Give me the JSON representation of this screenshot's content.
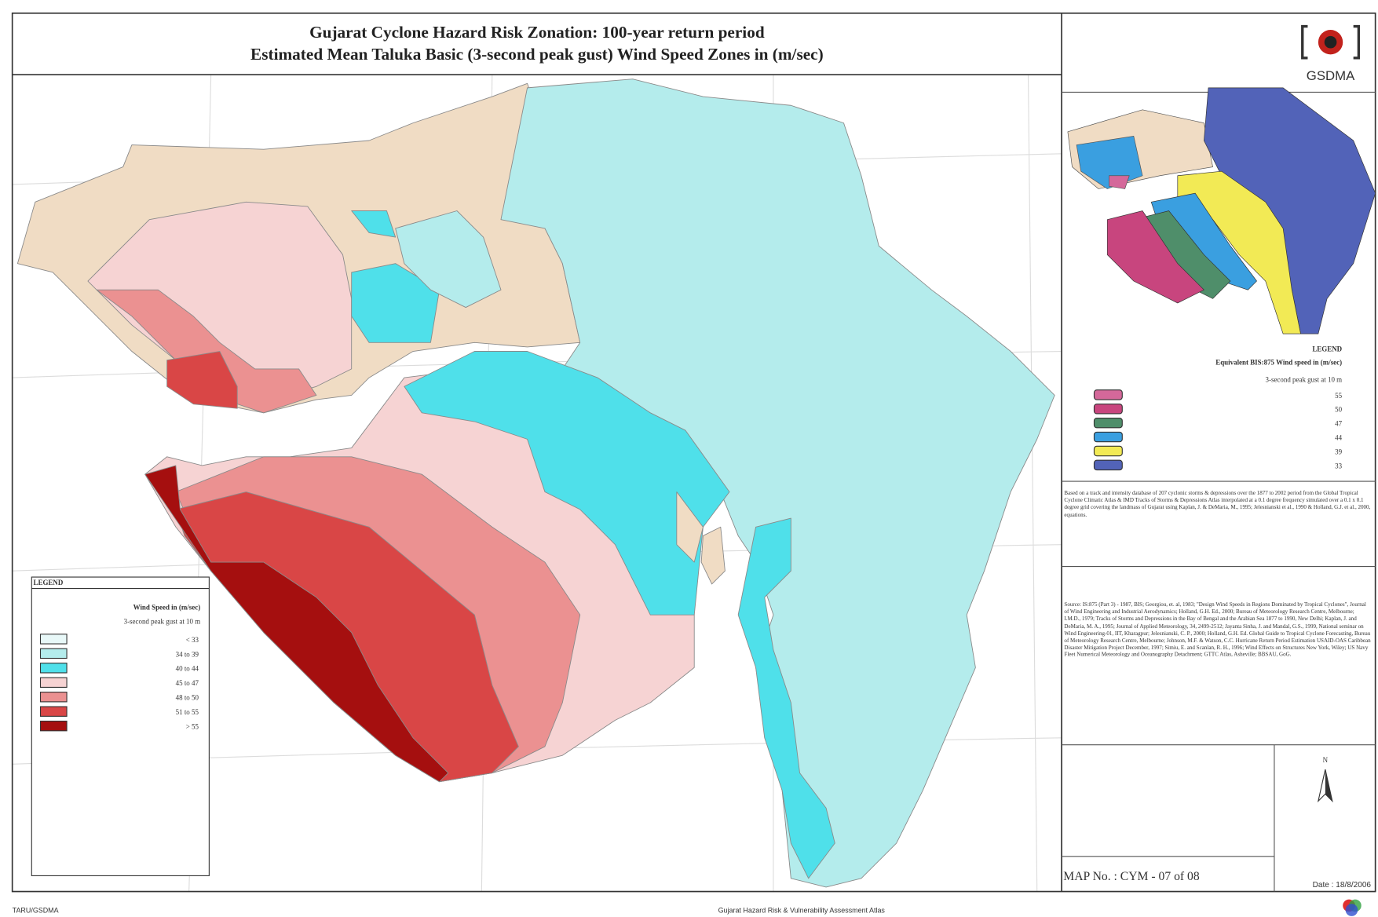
{
  "header": {
    "title_line1": "Gujarat Cyclone Hazard Risk Zonation: 100-year return period",
    "title_line2": "Estimated Mean Taluka Basic (3-second peak gust) Wind Speed Zones in (m/sec)"
  },
  "logo": {
    "text": "GSDMA"
  },
  "map_legend": {
    "title": "LEGEND",
    "heading": "Wind Speed in (m/sec)",
    "subheading": "3-second peak gust at 10 m",
    "items": [
      {
        "label": "< 33",
        "color": "#e8f8f8"
      },
      {
        "label": "34 to 39",
        "color": "#b4ecec"
      },
      {
        "label": "40 to 44",
        "color": "#4fe0ea"
      },
      {
        "label": "45 to 47",
        "color": "#f6d3d3"
      },
      {
        "label": "48 to 50",
        "color": "#eb9191"
      },
      {
        "label": "51 to 55",
        "color": "#d94646"
      },
      {
        "label": "> 55",
        "color": "#a50f0f"
      }
    ]
  },
  "inset_legend": {
    "title": "LEGEND",
    "heading": "Equivalent BIS:875 Wind speed in (m/sec)",
    "subheading": "3-second peak gust at 10 m",
    "items": [
      {
        "label": "55",
        "color": "#d4689a"
      },
      {
        "label": "50",
        "color": "#c8457e"
      },
      {
        "label": "47",
        "color": "#4f8e6a"
      },
      {
        "label": "44",
        "color": "#3a9fe0"
      },
      {
        "label": "39",
        "color": "#f2ea55"
      },
      {
        "label": "33",
        "color": "#5263b8"
      }
    ],
    "land_color": "#f0dcc4"
  },
  "notes": [
    "Based on a track and intensity database of 207 cyclonic storms & depressions over the 1877 to 2002 period from the Global Tropical Cyclone Climatic Atlas & IMD Tracks of Storms & Depressions Atlas interpolated at a 0.1 degree frequency simulated over a 0.1 x 0.1 degree grid covering the landmass of Gujarat using Kaplan, J. & DeMaria, M., 1995; Jelesnianski et al., 1990 & Holland, G.J. et al., 2000, equations.",
    "Source: IS:875 (Part 3) - 1987, BIS; Georgiou, et. al, 1983; \"Design Wind Speeds in Regions Dominated by Tropical Cyclones\", Journal of Wind Engineering and Industrial Aerodynamics; Holland, G.H. Ed., 2000; Bureau of Meteorology Research Centre, Melbourne; I.M.D., 1979; Tracks of Storms and Depressions in the Bay of Bengal and the Arabian Sea 1877 to 1990, New Delhi; Kaplan, J. and DeMaria, M. A., 1995; Journal of Applied Meteorology, 34, 2499-2512; Jayanta Sinha, J. and Mandal, G.S., 1999, National seminar on Wind Engineering-01, IIT, Kharagpur; Jelesnianski, C. P., 2000; Holland, G.H. Ed. Global Guide to Tropical Cyclone Forecasting, Bureau of Meteorology Research Centre, Melbourne; Johnson, M.F. & Watson, C.C. Hurricane Return Period Estimation USAID-OAS Caribbean Disaster Mitigation Project December, 1997; Simiu, E. and Scanlan, R. H., 1996; Wind Effects on Structures New York, Wiley; US Navy Fleet Numerical Meteorology and Oceanography Detachment; GTTC Atlas, Asheville; BBSAU, GoG."
  ],
  "land_color": "#f0dcc4",
  "north": "N",
  "map_number": "MAP No. : CYM - 07 of 08",
  "date": "Date : 18/8/2006",
  "footer": {
    "left": "TARU/GSDMA",
    "center": "Gujarat Hazard Risk & Vulnerability Assessment Atlas"
  }
}
